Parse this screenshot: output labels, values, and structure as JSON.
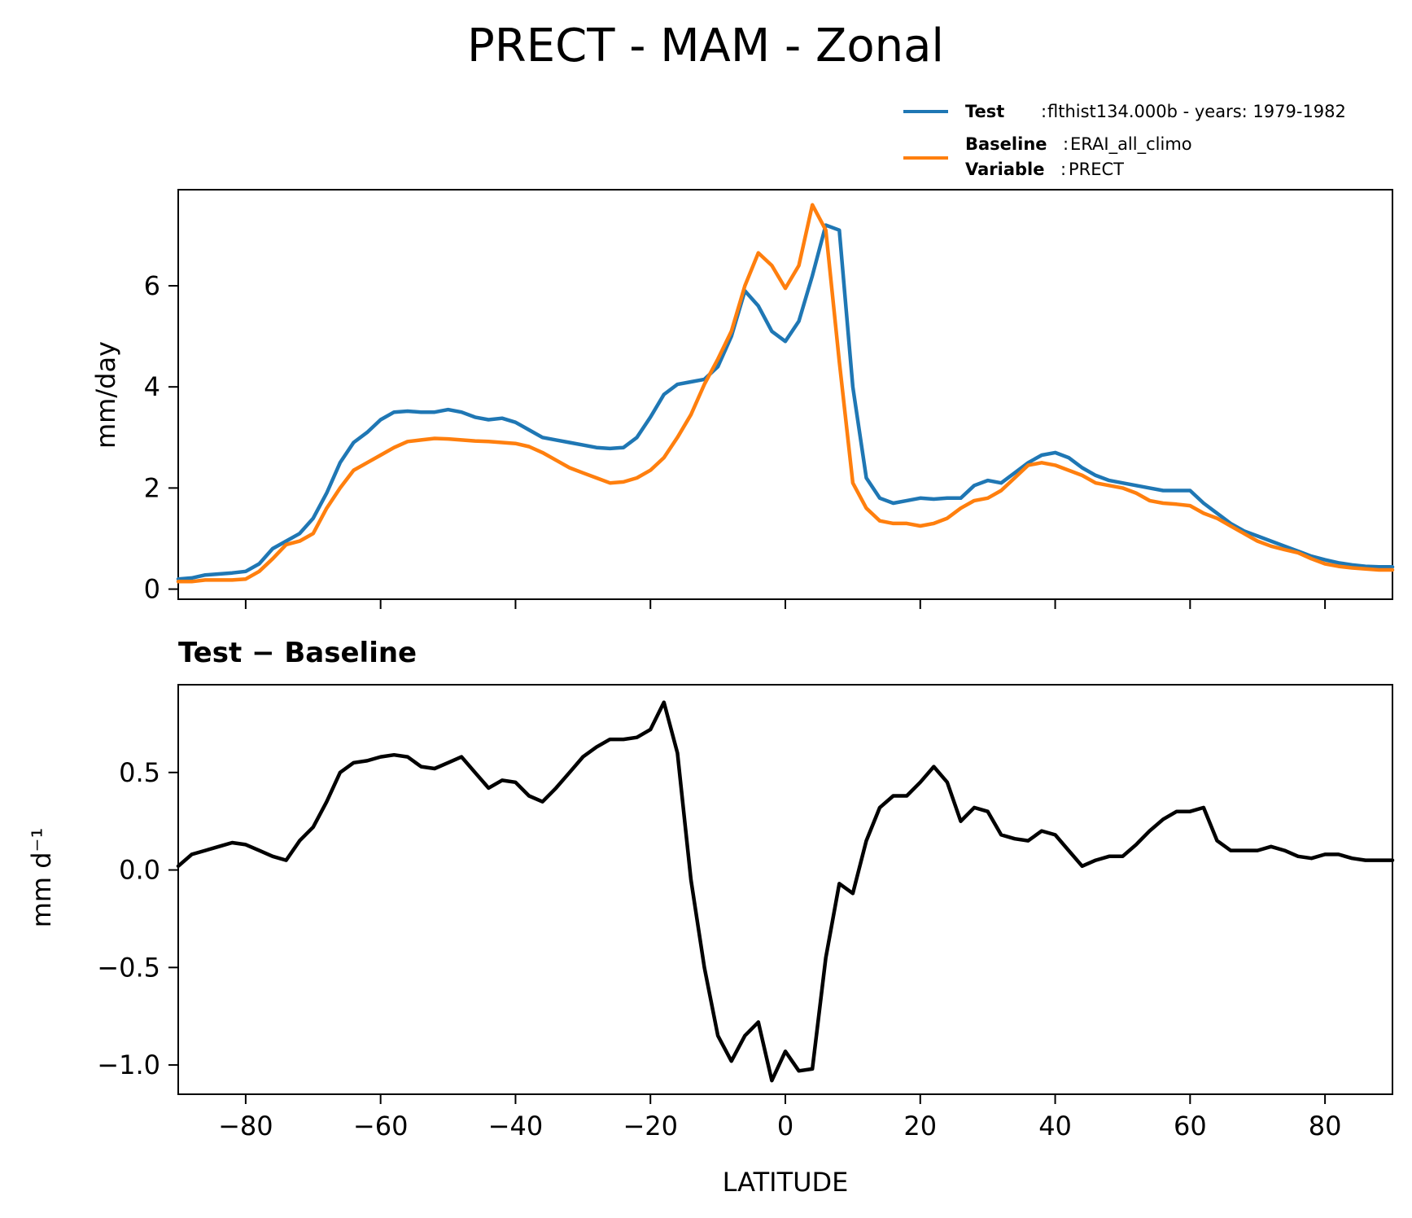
{
  "chart_data": [
    {
      "type": "line",
      "title": "PRECT - MAM - Zonal",
      "xlabel": "",
      "ylabel": "mm/day",
      "xlim": [
        -90,
        90
      ],
      "ylim": [
        -0.2,
        7.9
      ],
      "xticks": [
        -80,
        -60,
        -40,
        -20,
        0,
        20,
        40,
        60,
        80
      ],
      "yticks": [
        0,
        2,
        4,
        6
      ],
      "ytick_labels": [
        "0",
        "2",
        "4",
        "6"
      ],
      "colors": {
        "test": "#1f77b4",
        "baseline": "#ff7f0e"
      },
      "legend": {
        "position": "top-right",
        "test_key": "Test",
        "test_sep": ":",
        "test_text": "flthist134.000b - years: 1979-1982",
        "baseline_key": "Baseline",
        "baseline_sep": ":",
        "baseline_text": "ERAI_all_climo",
        "variable_key": "Variable",
        "variable_sep": ":",
        "variable_text": "PRECT"
      },
      "x": [
        -90,
        -88,
        -86,
        -84,
        -82,
        -80,
        -78,
        -76,
        -74,
        -72,
        -70,
        -68,
        -66,
        -64,
        -62,
        -60,
        -58,
        -56,
        -54,
        -52,
        -50,
        -48,
        -46,
        -44,
        -42,
        -40,
        -38,
        -36,
        -34,
        -32,
        -30,
        -28,
        -26,
        -24,
        -22,
        -20,
        -18,
        -16,
        -14,
        -12,
        -10,
        -8,
        -6,
        -4,
        -2,
        0,
        2,
        4,
        6,
        8,
        10,
        12,
        14,
        16,
        18,
        20,
        22,
        24,
        26,
        28,
        30,
        32,
        34,
        36,
        38,
        40,
        42,
        44,
        46,
        48,
        50,
        52,
        54,
        56,
        58,
        60,
        62,
        64,
        66,
        68,
        70,
        72,
        74,
        76,
        78,
        80,
        82,
        84,
        86,
        88,
        90
      ],
      "series": [
        {
          "name": "Test",
          "values": [
            0.2,
            0.22,
            0.28,
            0.3,
            0.32,
            0.35,
            0.5,
            0.8,
            0.95,
            1.1,
            1.4,
            1.9,
            2.5,
            2.9,
            3.1,
            3.35,
            3.5,
            3.52,
            3.5,
            3.5,
            3.55,
            3.5,
            3.4,
            3.35,
            3.38,
            3.3,
            3.15,
            3.0,
            2.95,
            2.9,
            2.85,
            2.8,
            2.78,
            2.8,
            3.0,
            3.4,
            3.85,
            4.05,
            4.1,
            4.15,
            4.4,
            5.0,
            5.9,
            5.6,
            5.1,
            4.9,
            5.3,
            6.2,
            7.2,
            7.1,
            4.0,
            2.2,
            1.8,
            1.7,
            1.75,
            1.8,
            1.78,
            1.8,
            1.8,
            2.05,
            2.15,
            2.1,
            2.3,
            2.5,
            2.65,
            2.7,
            2.6,
            2.4,
            2.25,
            2.15,
            2.1,
            2.05,
            2.0,
            1.95,
            1.95,
            1.95,
            1.7,
            1.5,
            1.3,
            1.15,
            1.05,
            0.95,
            0.85,
            0.75,
            0.65,
            0.58,
            0.52,
            0.48,
            0.45,
            0.44,
            0.44
          ]
        },
        {
          "name": "Baseline",
          "values": [
            0.15,
            0.15,
            0.18,
            0.18,
            0.18,
            0.2,
            0.35,
            0.6,
            0.88,
            0.95,
            1.1,
            1.6,
            2.0,
            2.35,
            2.5,
            2.65,
            2.8,
            2.92,
            2.95,
            2.98,
            2.97,
            2.95,
            2.93,
            2.92,
            2.9,
            2.88,
            2.82,
            2.7,
            2.55,
            2.4,
            2.3,
            2.2,
            2.1,
            2.12,
            2.2,
            2.35,
            2.6,
            3.0,
            3.45,
            4.05,
            4.55,
            5.1,
            6.0,
            6.65,
            6.4,
            5.95,
            6.4,
            7.6,
            7.1,
            4.5,
            2.1,
            1.6,
            1.35,
            1.3,
            1.3,
            1.25,
            1.3,
            1.4,
            1.6,
            1.75,
            1.8,
            1.95,
            2.2,
            2.45,
            2.5,
            2.45,
            2.35,
            2.25,
            2.1,
            2.05,
            2.0,
            1.9,
            1.75,
            1.7,
            1.68,
            1.65,
            1.5,
            1.4,
            1.25,
            1.1,
            0.95,
            0.85,
            0.78,
            0.72,
            0.6,
            0.5,
            0.45,
            0.42,
            0.4,
            0.38,
            0.38
          ]
        }
      ]
    },
    {
      "type": "line",
      "title": "Test − Baseline",
      "xlabel": "LATITUDE",
      "ylabel": "mm d⁻¹",
      "xlim": [
        -90,
        90
      ],
      "ylim": [
        -1.15,
        0.95
      ],
      "xticks": [
        -80,
        -60,
        -40,
        -20,
        0,
        20,
        40,
        60,
        80
      ],
      "xtick_labels": [
        "−80",
        "−60",
        "−40",
        "−20",
        "0",
        "20",
        "40",
        "60",
        "80"
      ],
      "yticks": [
        -1.0,
        -0.5,
        0.0,
        0.5
      ],
      "ytick_labels": [
        "−1.0",
        "−0.5",
        "0.0",
        "0.5"
      ],
      "colors": {
        "diff": "#000000"
      },
      "x": [
        -90,
        -88,
        -86,
        -84,
        -82,
        -80,
        -78,
        -76,
        -74,
        -72,
        -70,
        -68,
        -66,
        -64,
        -62,
        -60,
        -58,
        -56,
        -54,
        -52,
        -50,
        -48,
        -46,
        -44,
        -42,
        -40,
        -38,
        -36,
        -34,
        -32,
        -30,
        -28,
        -26,
        -24,
        -22,
        -20,
        -18,
        -16,
        -14,
        -12,
        -10,
        -8,
        -6,
        -4,
        -2,
        0,
        2,
        4,
        6,
        8,
        10,
        12,
        14,
        16,
        18,
        20,
        22,
        24,
        26,
        28,
        30,
        32,
        34,
        36,
        38,
        40,
        42,
        44,
        46,
        48,
        50,
        52,
        54,
        56,
        58,
        60,
        62,
        64,
        66,
        68,
        70,
        72,
        74,
        76,
        78,
        80,
        82,
        84,
        86,
        88,
        90
      ],
      "series": [
        {
          "name": "Test − Baseline",
          "values": [
            0.02,
            0.08,
            0.1,
            0.12,
            0.14,
            0.13,
            0.1,
            0.07,
            0.05,
            0.15,
            0.22,
            0.35,
            0.5,
            0.55,
            0.56,
            0.58,
            0.59,
            0.58,
            0.53,
            0.52,
            0.55,
            0.58,
            0.5,
            0.42,
            0.46,
            0.45,
            0.38,
            0.35,
            0.42,
            0.5,
            0.58,
            0.63,
            0.67,
            0.67,
            0.68,
            0.72,
            0.86,
            0.6,
            -0.05,
            -0.5,
            -0.85,
            -0.98,
            -0.85,
            -0.78,
            -1.08,
            -0.93,
            -1.03,
            -1.02,
            -0.45,
            -0.07,
            -0.12,
            0.15,
            0.32,
            0.38,
            0.38,
            0.45,
            0.53,
            0.45,
            0.25,
            0.32,
            0.3,
            0.18,
            0.16,
            0.15,
            0.2,
            0.18,
            0.1,
            0.02,
            0.05,
            0.07,
            0.07,
            0.13,
            0.2,
            0.26,
            0.3,
            0.3,
            0.32,
            0.15,
            0.1,
            0.1,
            0.1,
            0.12,
            0.1,
            0.07,
            0.06,
            0.08,
            0.08,
            0.06,
            0.05,
            0.05,
            0.05
          ]
        }
      ]
    }
  ]
}
